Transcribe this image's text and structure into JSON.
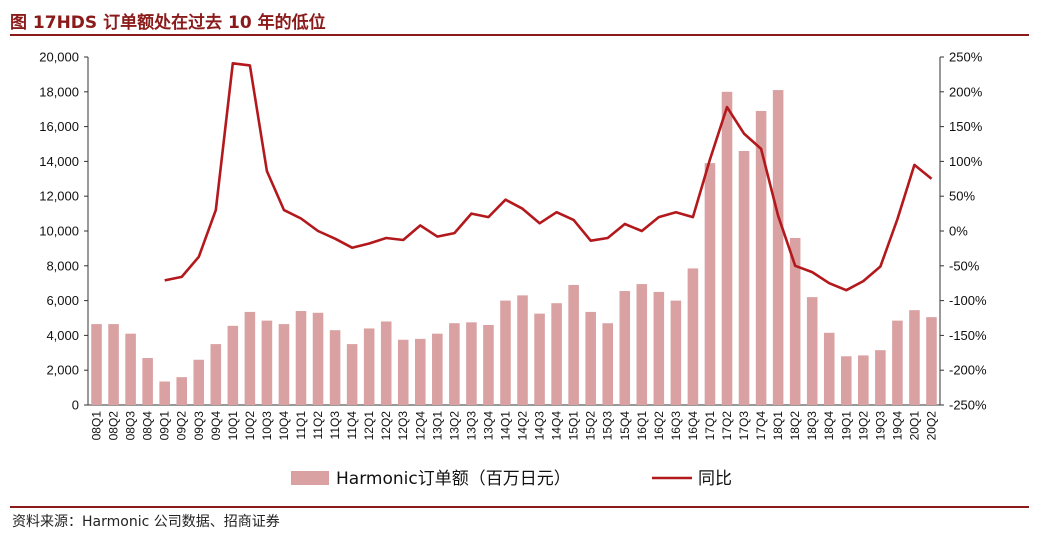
{
  "title": "图 17HDS 订单额处在过去 10 年的低位",
  "source": "资料来源：Harmonic 公司数据、招商证券",
  "colors": {
    "bar": "#d9a1a1",
    "line": "#b3191c",
    "accent": "#8b1a1a"
  },
  "chart_data": {
    "type": "bar",
    "categories": [
      "08Q1",
      "08Q2",
      "08Q3",
      "08Q4",
      "09Q1",
      "09Q2",
      "09Q3",
      "09Q4",
      "10Q1",
      "10Q2",
      "10Q3",
      "10Q4",
      "11Q1",
      "11Q2",
      "11Q3",
      "11Q4",
      "12Q1",
      "12Q2",
      "12Q3",
      "12Q4",
      "13Q1",
      "13Q2",
      "13Q3",
      "13Q4",
      "14Q1",
      "14Q2",
      "14Q3",
      "14Q4",
      "15Q1",
      "15Q2",
      "15Q3",
      "15Q4",
      "16Q1",
      "16Q2",
      "16Q3",
      "16Q4",
      "17Q1",
      "17Q2",
      "17Q3",
      "17Q4",
      "18Q1",
      "18Q2",
      "18Q3",
      "18Q4",
      "19Q1",
      "19Q2",
      "19Q3",
      "19Q4",
      "20Q1",
      "20Q2"
    ],
    "series": [
      {
        "name": "Harmonic订单额（百万日元）",
        "type": "bar",
        "axis": "left",
        "values": [
          4650,
          4650,
          4100,
          2700,
          1350,
          1600,
          2600,
          3500,
          4550,
          5350,
          4850,
          4650,
          5400,
          5300,
          4300,
          3500,
          4400,
          4800,
          3750,
          3800,
          4100,
          4700,
          4750,
          4600,
          6000,
          6300,
          5250,
          5850,
          6900,
          5350,
          4700,
          6550,
          6950,
          6500,
          6000,
          7850,
          13900,
          18000,
          14600,
          16900,
          18100,
          9600,
          6200,
          4150,
          2800,
          2850,
          3150,
          4850,
          5450,
          5050
        ]
      },
      {
        "name": "同比",
        "type": "line",
        "axis": "right",
        "values": [
          null,
          null,
          null,
          null,
          -71,
          -66,
          -37,
          30,
          241,
          238,
          86,
          30,
          18,
          0,
          -11,
          -24,
          -18,
          -10,
          -13,
          8,
          -8,
          -3,
          25,
          20,
          45,
          32,
          11,
          27,
          16,
          -14,
          -10,
          10,
          0,
          20,
          27,
          20,
          103,
          178,
          140,
          118,
          22,
          -50,
          -59,
          -75,
          -85,
          -72,
          -51,
          17,
          95,
          75
        ]
      }
    ],
    "y_left": {
      "lim": [
        0,
        20000
      ],
      "ticks": [
        "0",
        "2,000",
        "4,000",
        "6,000",
        "8,000",
        "10,000",
        "12,000",
        "14,000",
        "16,000",
        "18,000",
        "20,000"
      ]
    },
    "y_right": {
      "lim": [
        -250,
        250
      ],
      "ticks": [
        "-250%",
        "-200%",
        "-150%",
        "-100%",
        "-50%",
        "0%",
        "50%",
        "100%",
        "150%",
        "200%",
        "250%"
      ]
    },
    "legend": {
      "bar_label": "Harmonic订单额（百万日元）",
      "line_label": "同比",
      "position": "bottom"
    },
    "grid": false
  }
}
